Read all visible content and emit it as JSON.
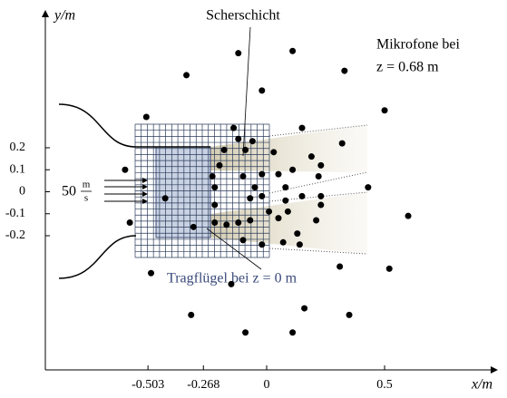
{
  "chart_data": {
    "type": "scatter",
    "xlabel": "x/m",
    "ylabel": "y/m",
    "color": "#000000",
    "xlim": [
      -0.938,
      0.965
    ],
    "ylim": [
      -0.81,
      0.81
    ],
    "xticks": [
      -0.503,
      -0.268,
      0,
      0.5
    ],
    "yticks": [
      0.2,
      0.1,
      0,
      -0.1,
      -0.2
    ],
    "annotations": {
      "shear_layer": "Scherschicht",
      "microphones_line1": "Mikrofone bei",
      "microphones_line2": "z = 0.68 m",
      "wing": "Tragflügel bei z = 0 m",
      "velocity_value": "50",
      "velocity_unit_num": "m",
      "velocity_unit_den": "s"
    },
    "x": [
      -0.12,
      0.11,
      0.33,
      -0.34,
      -0.02,
      -0.51,
      0.5,
      -0.14,
      0.15,
      -0.12,
      -0.06,
      0.32,
      -0.18,
      -0.09,
      0.03,
      0.19,
      -0.6,
      -0.2,
      -0.23,
      -0.1,
      -0.02,
      0.05,
      0.11,
      0.23,
      0.22,
      -0.22,
      -0.05,
      0.08,
      0.43,
      -0.43,
      -0.22,
      -0.07,
      -0.02,
      0.08,
      0.15,
      0.23,
      0.01,
      0.09,
      -0.22,
      -0.12,
      0.05,
      0.21,
      0.23,
      0.6,
      -0.58,
      -0.31,
      -0.07,
      -0.17,
      0.13,
      -0.1,
      0.07,
      -0.02,
      0.14,
      -0.49,
      0.52,
      0.31,
      -0.15,
      -0.32,
      0.16,
      0.35,
      -0.09,
      0.11
    ],
    "values": [
      0.63,
      0.64,
      0.55,
      0.53,
      0.46,
      0.34,
      0.37,
      0.29,
      0.29,
      0.24,
      0.23,
      0.22,
      0.19,
      0.19,
      0.18,
      0.16,
      0.1,
      0.12,
      0.07,
      0.07,
      0.08,
      0.08,
      0.1,
      0.12,
      0.07,
      0.02,
      0.02,
      0.02,
      0.02,
      -0.03,
      -0.06,
      -0.03,
      -0.02,
      -0.04,
      -0.02,
      -0.02,
      -0.09,
      -0.09,
      -0.14,
      -0.14,
      -0.12,
      -0.13,
      -0.06,
      -0.11,
      -0.14,
      -0.16,
      -0.13,
      -0.15,
      -0.19,
      -0.22,
      -0.23,
      -0.24,
      -0.24,
      -0.37,
      -0.35,
      -0.34,
      -0.42,
      -0.56,
      -0.53,
      -0.56,
      -0.64,
      -0.64
    ]
  }
}
